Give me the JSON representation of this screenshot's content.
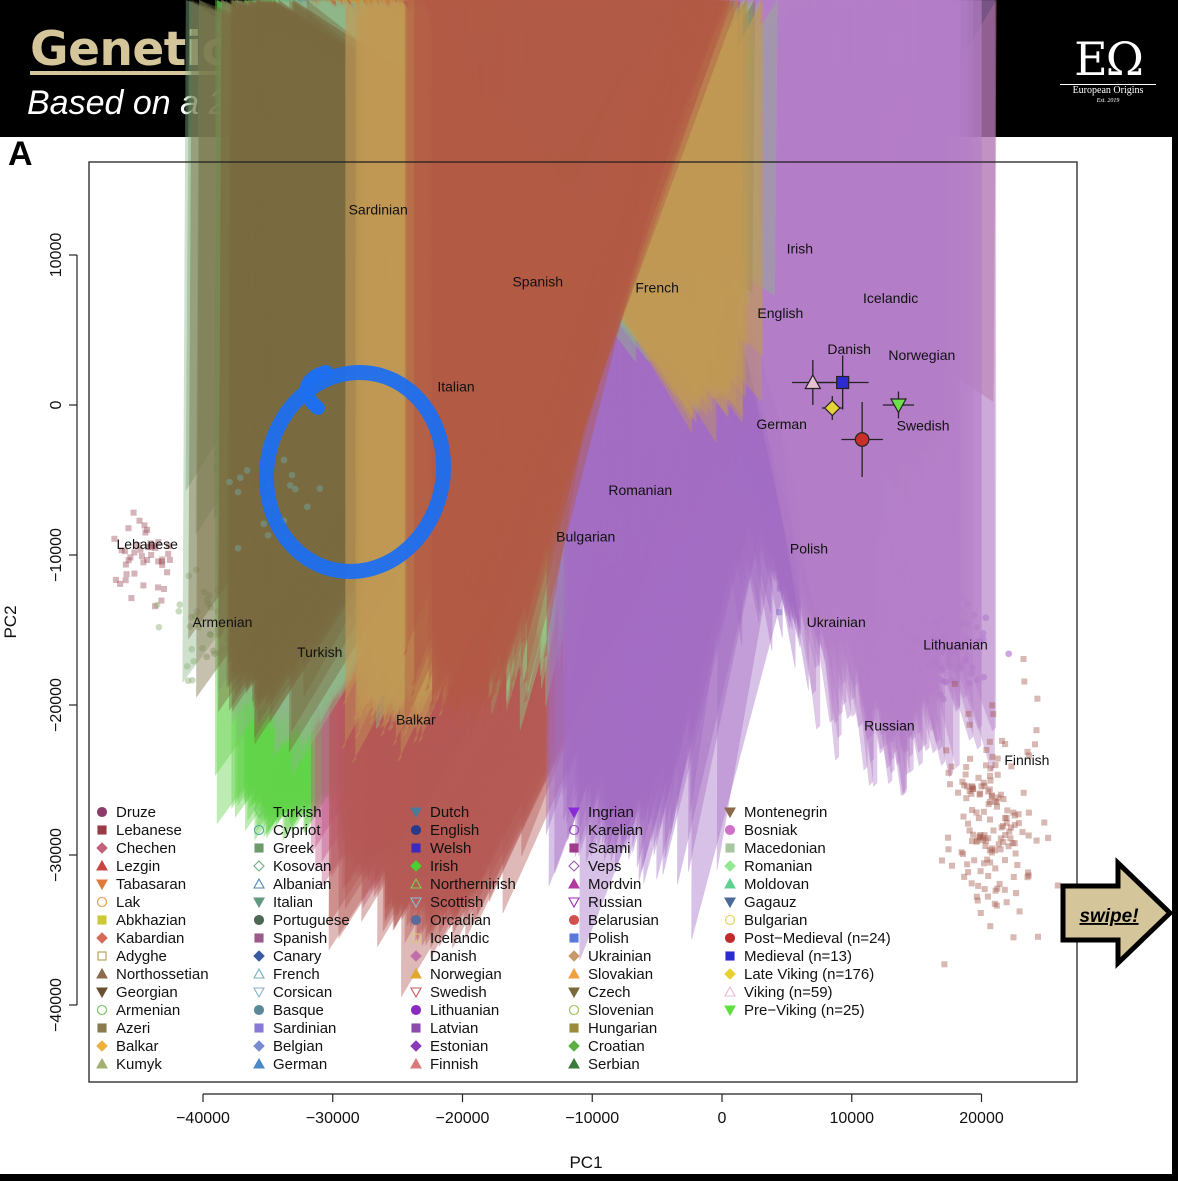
{
  "header": {
    "title": "Genetic Map of Europe",
    "subtitle": "Based on a 2023 Study by Rodríguez-Varela et al.",
    "logo_mark": "EΩ",
    "logo_name": "European Origins",
    "logo_est": "Est. 2019"
  },
  "panel_label": "A",
  "swipe_label": "swipe!",
  "annotation": {
    "type": "hand-drawn ellipse",
    "color": "#1e6ff0",
    "target": "Italian/Greek cluster"
  },
  "chart_data": {
    "type": "scatter",
    "xlabel": "PC1",
    "ylabel": "PC2",
    "xlim": [
      -49000,
      27000
    ],
    "ylim": [
      -45000,
      16000
    ],
    "xticks": [
      -40000,
      -30000,
      -20000,
      -10000,
      0,
      10000,
      20000
    ],
    "yticks": [
      -40000,
      -30000,
      -20000,
      -10000,
      0,
      10000
    ],
    "xtick_labels": [
      "−40000",
      "−30000",
      "−20000",
      "−10000",
      "0",
      "10000",
      "20000"
    ],
    "ytick_labels": [
      "−40000",
      "−30000",
      "−20000",
      "−10000",
      "0",
      "10000"
    ],
    "population_labels": [
      {
        "text": "Sardinian",
        "x": -26500,
        "y": 12700
      },
      {
        "text": "Spanish",
        "x": -14200,
        "y": 7900
      },
      {
        "text": "French",
        "x": -5000,
        "y": 7500
      },
      {
        "text": "Irish",
        "x": 6000,
        "y": 10100
      },
      {
        "text": "English",
        "x": 4500,
        "y": 5800
      },
      {
        "text": "Icelandic",
        "x": 13000,
        "y": 6800
      },
      {
        "text": "Danish",
        "x": 9800,
        "y": 3400
      },
      {
        "text": "Norwegian",
        "x": 15400,
        "y": 3000
      },
      {
        "text": "Italian",
        "x": -20500,
        "y": 900
      },
      {
        "text": "German",
        "x": 4600,
        "y": -1600
      },
      {
        "text": "Swedish",
        "x": 15500,
        "y": -1700
      },
      {
        "text": "Romanian",
        "x": -6300,
        "y": -6000
      },
      {
        "text": "Bulgarian",
        "x": -10500,
        "y": -9100
      },
      {
        "text": "Lebanese",
        "x": -44300,
        "y": -9600
      },
      {
        "text": "Polish",
        "x": 6700,
        "y": -9900
      },
      {
        "text": "Armenian",
        "x": -38500,
        "y": -14800
      },
      {
        "text": "Ukrainian",
        "x": 8800,
        "y": -14800
      },
      {
        "text": "Lithuanian",
        "x": 18000,
        "y": -16300
      },
      {
        "text": "Turkish",
        "x": -31000,
        "y": -16800
      },
      {
        "text": "Balkar",
        "x": -23600,
        "y": -21300
      },
      {
        "text": "Russian",
        "x": 12900,
        "y": -21700
      },
      {
        "text": "Finnish",
        "x": 23500,
        "y": -24000
      }
    ],
    "clusters": [
      {
        "name": "Sardinian",
        "cx": -29000,
        "cy": 12200,
        "sx": 1400,
        "sy": 1100,
        "n": 45,
        "color": "#8a6fd8",
        "shape": "square"
      },
      {
        "name": "Spanish",
        "cx": -14000,
        "cy": 6500,
        "sx": 2300,
        "sy": 1800,
        "n": 110,
        "color": "#8b4a9c",
        "shape": "square"
      },
      {
        "name": "French",
        "cx": -4000,
        "cy": 5500,
        "sx": 3000,
        "sy": 2200,
        "n": 160,
        "color": "#6aa098",
        "shape": "triangle"
      },
      {
        "name": "Italian",
        "cx": -23500,
        "cy": -1200,
        "sx": 5200,
        "sy": 4200,
        "n": 330,
        "color": "#6f9a72",
        "shape": "triangle-down"
      },
      {
        "name": "Greek",
        "cx": -29000,
        "cy": -5500,
        "sx": 4600,
        "sy": 2800,
        "n": 190,
        "color": "#7d9e73",
        "shape": "square"
      },
      {
        "name": "Irish",
        "cx": 6000,
        "cy": 8300,
        "sx": 1500,
        "sy": 1300,
        "n": 170,
        "color": "#62d44a",
        "shape": "diamond"
      },
      {
        "name": "English",
        "cx": 4500,
        "cy": 4500,
        "sx": 2600,
        "sy": 1700,
        "n": 190,
        "color": "#3f5aa8",
        "shape": "circle"
      },
      {
        "name": "German",
        "cx": 5500,
        "cy": -1500,
        "sx": 3300,
        "sy": 3500,
        "n": 220,
        "color": "#4f8fc4",
        "shape": "triangle"
      },
      {
        "name": "Icelandic",
        "cx": 11500,
        "cy": 5300,
        "sx": 1300,
        "sy": 1100,
        "n": 70,
        "color": "#c9b860",
        "shape": "square"
      },
      {
        "name": "Danish",
        "cx": 10000,
        "cy": 2400,
        "sx": 1700,
        "sy": 1500,
        "n": 100,
        "color": "#c3588a",
        "shape": "diamond"
      },
      {
        "name": "Norwegian",
        "cx": 12500,
        "cy": 2600,
        "sx": 1800,
        "sy": 1500,
        "n": 120,
        "color": "#c99136",
        "shape": "triangle"
      },
      {
        "name": "Swedish",
        "cx": 13500,
        "cy": -1800,
        "sx": 2000,
        "sy": 2300,
        "n": 140,
        "color": "#b55a55",
        "shape": "triangle-down"
      },
      {
        "name": "Romanian",
        "cx": -8000,
        "cy": -7400,
        "sx": 4200,
        "sy": 1600,
        "n": 120,
        "color": "#8fd28a",
        "shape": "diamond"
      },
      {
        "name": "Bulgarian",
        "cx": -13000,
        "cy": -8600,
        "sx": 3300,
        "sy": 1600,
        "n": 80,
        "color": "#b3a55f",
        "shape": "circle"
      },
      {
        "name": "Polish",
        "cx": 7500,
        "cy": -9800,
        "sx": 1900,
        "sy": 2400,
        "n": 150,
        "color": "#4b5fc4",
        "shape": "square"
      },
      {
        "name": "Ukrainian",
        "cx": 8500,
        "cy": -14500,
        "sx": 2600,
        "sy": 2100,
        "n": 100,
        "color": "#a46dc4",
        "shape": "triangle-down"
      },
      {
        "name": "Lithuanian",
        "cx": 16800,
        "cy": -16000,
        "sx": 1900,
        "sy": 1600,
        "n": 150,
        "color": "#8a2fc2",
        "shape": "circle"
      },
      {
        "name": "Russian",
        "cx": 13500,
        "cy": -21500,
        "sx": 2800,
        "sy": 2500,
        "n": 110,
        "color": "#b57fc9",
        "shape": "triangle"
      },
      {
        "name": "Finnish",
        "cx": 21000,
        "cy": -27000,
        "sx": 1700,
        "sy": 3700,
        "n": 160,
        "color": "#a4584a",
        "shape": "square"
      },
      {
        "name": "Lebanese",
        "cx": -44500,
        "cy": -10500,
        "sx": 1100,
        "sy": 1100,
        "n": 45,
        "color": "#9b4f5a",
        "shape": "square"
      },
      {
        "name": "Armenian",
        "cx": -39000,
        "cy": -15000,
        "sx": 2100,
        "sy": 1800,
        "n": 55,
        "color": "#86a868",
        "shape": "circle"
      },
      {
        "name": "Turkish",
        "cx": -32500,
        "cy": -19000,
        "sx": 3100,
        "sy": 2000,
        "n": 120,
        "color": "#8fb88a",
        "shape": "triangle-down"
      },
      {
        "name": "Georgian",
        "cx": -36500,
        "cy": -19500,
        "sx": 1600,
        "sy": 1500,
        "n": 50,
        "color": "#7a6a40",
        "shape": "triangle-down"
      },
      {
        "name": "Balkar",
        "cx": -25500,
        "cy": -20500,
        "sx": 1600,
        "sy": 1300,
        "n": 60,
        "color": "#c29a55",
        "shape": "diamond"
      },
      {
        "name": "Lezgin",
        "cx": -19500,
        "cy": -19200,
        "sx": 2300,
        "sy": 1500,
        "n": 80,
        "color": "#b35a45",
        "shape": "triangle"
      },
      {
        "name": "Basque",
        "cx": -35500,
        "cy": -6000,
        "sx": 2000,
        "sy": 1400,
        "n": 18,
        "color": "#6fb0b0",
        "shape": "circle"
      }
    ],
    "ancient_groups": [
      {
        "name": "Post-Medieval (n=24)",
        "x": 10800,
        "y": -2300,
        "xerr": 1600,
        "yerr": 2500,
        "color": "#c7302a",
        "shape": "circle"
      },
      {
        "name": "Medieval (n=13)",
        "x": 9300,
        "y": 1500,
        "xerr": 2000,
        "yerr": 1800,
        "color": "#2b2bd0",
        "shape": "square"
      },
      {
        "name": "Late Viking (n=176)",
        "x": 8500,
        "y": -200,
        "xerr": 800,
        "yerr": 800,
        "color": "#e6d23a",
        "shape": "diamond"
      },
      {
        "name": "Viking (n=59)",
        "x": 7000,
        "y": 1500,
        "xerr": 1600,
        "yerr": 1500,
        "color": "#e7c0d2",
        "shape": "triangle"
      },
      {
        "name": "Pre-Viking (n=25)",
        "x": 13600,
        "y": 0,
        "xerr": 1200,
        "yerr": 900,
        "color": "#6de04a",
        "shape": "triangle-down"
      }
    ],
    "legend": {
      "position": "bottom-left",
      "columns": [
        [
          {
            "label": "Druze",
            "color": "#8e3a6a",
            "shape": "circle"
          },
          {
            "label": "Lebanese",
            "color": "#9b3a45",
            "shape": "square"
          },
          {
            "label": "Chechen",
            "color": "#c4607a",
            "shape": "diamond"
          },
          {
            "label": "Lezgin",
            "color": "#c94545",
            "shape": "triangle"
          },
          {
            "label": "Tabasaran",
            "color": "#e07a3a",
            "shape": "triangle-down"
          },
          {
            "label": "Lak",
            "color": "#e59a3a",
            "shape": "circle-open"
          },
          {
            "label": "Abkhazian",
            "color": "#c9c93a",
            "shape": "square"
          },
          {
            "label": "Kabardian",
            "color": "#d86a5a",
            "shape": "diamond"
          },
          {
            "label": "Adyghe",
            "color": "#b59a45",
            "shape": "square-open"
          },
          {
            "label": "Northossetian",
            "color": "#8a6a4a",
            "shape": "triangle"
          },
          {
            "label": "Georgian",
            "color": "#6a5030",
            "shape": "triangle-down"
          },
          {
            "label": "Armenian",
            "color": "#6fc35a",
            "shape": "circle-open"
          },
          {
            "label": "Azeri",
            "color": "#8a7a50",
            "shape": "square"
          },
          {
            "label": "Balkar",
            "color": "#f0b040",
            "shape": "diamond"
          },
          {
            "label": "Kumyk",
            "color": "#a0b070",
            "shape": "triangle"
          }
        ],
        [
          {
            "label": "Turkish",
            "color": "#6fd06a",
            "shape": "triangle-down-open"
          },
          {
            "label": "Cypriot",
            "color": "#4aa8a0",
            "shape": "circle-open"
          },
          {
            "label": "Greek",
            "color": "#6f9a6a",
            "shape": "square"
          },
          {
            "label": "Kosovan",
            "color": "#6fae7a",
            "shape": "diamond-open"
          },
          {
            "label": "Albanian",
            "color": "#4f86b0",
            "shape": "triangle-open"
          },
          {
            "label": "Italian",
            "color": "#5f9a80",
            "shape": "triangle-down"
          },
          {
            "label": "Portuguese",
            "color": "#4a6a55",
            "shape": "circle"
          },
          {
            "label": "Spanish",
            "color": "#9a5a8a",
            "shape": "square"
          },
          {
            "label": "Canary",
            "color": "#3a5aa0",
            "shape": "diamond"
          },
          {
            "label": "French",
            "color": "#6fb0c0",
            "shape": "triangle-open"
          },
          {
            "label": "Corsican",
            "color": "#8ab0c8",
            "shape": "triangle-down-open"
          },
          {
            "label": "Basque",
            "color": "#5a8a9a",
            "shape": "circle"
          },
          {
            "label": "Sardinian",
            "color": "#8a7ad8",
            "shape": "square"
          },
          {
            "label": "Belgian",
            "color": "#7a8ad0",
            "shape": "diamond"
          },
          {
            "label": "German",
            "color": "#4a8ac8",
            "shape": "triangle"
          }
        ],
        [
          {
            "label": "Dutch",
            "color": "#4a7a9a",
            "shape": "triangle-down"
          },
          {
            "label": "English",
            "color": "#2a3a8a",
            "shape": "circle"
          },
          {
            "label": "Welsh",
            "color": "#3a2ac0",
            "shape": "square"
          },
          {
            "label": "Irish",
            "color": "#4ad030",
            "shape": "diamond"
          },
          {
            "label": "Northernirish",
            "color": "#7ad050",
            "shape": "triangle-open"
          },
          {
            "label": "Scottish",
            "color": "#8ac0d8",
            "shape": "triangle-down-open"
          },
          {
            "label": "Orcadian",
            "color": "#5a6a9a",
            "shape": "circle"
          },
          {
            "label": "Icelandic",
            "color": "#d8c878",
            "shape": "square-open"
          },
          {
            "label": "Danish",
            "color": "#c070a8",
            "shape": "diamond"
          },
          {
            "label": "Norwegian",
            "color": "#e0a830",
            "shape": "triangle"
          },
          {
            "label": "Swedish",
            "color": "#c85a5a",
            "shape": "triangle-down-open"
          },
          {
            "label": "Lithuanian",
            "color": "#8a2ac0",
            "shape": "circle"
          },
          {
            "label": "Latvian",
            "color": "#8a4ab0",
            "shape": "square"
          },
          {
            "label": "Estonian",
            "color": "#8a3ab8",
            "shape": "diamond"
          },
          {
            "label": "Finnish",
            "color": "#d87a7a",
            "shape": "triangle"
          }
        ],
        [
          {
            "label": "Ingrian",
            "color": "#8a2ad8",
            "shape": "triangle-down"
          },
          {
            "label": "Karelian",
            "color": "#9a4ac8",
            "shape": "circle-open"
          },
          {
            "label": "Saami",
            "color": "#a03a8a",
            "shape": "square"
          },
          {
            "label": "Veps",
            "color": "#9a5aa8",
            "shape": "diamond-open"
          },
          {
            "label": "Mordvin",
            "color": "#b03aa0",
            "shape": "triangle"
          },
          {
            "label": "Russian",
            "color": "#9a2ab0",
            "shape": "triangle-down-open"
          },
          {
            "label": "Belarusian",
            "color": "#d05050",
            "shape": "circle"
          },
          {
            "label": "Polish",
            "color": "#5a7ad8",
            "shape": "square"
          },
          {
            "label": "Ukrainian",
            "color": "#c89a6a",
            "shape": "diamond"
          },
          {
            "label": "Slovakian",
            "color": "#f0a040",
            "shape": "triangle"
          },
          {
            "label": "Czech",
            "color": "#7a6a3a",
            "shape": "triangle-down"
          },
          {
            "label": "Slovenian",
            "color": "#9ac050",
            "shape": "circle-open"
          },
          {
            "label": "Hungarian",
            "color": "#9a8a3a",
            "shape": "square"
          },
          {
            "label": "Croatian",
            "color": "#5ab040",
            "shape": "diamond"
          },
          {
            "label": "Serbian",
            "color": "#3a7a3a",
            "shape": "triangle"
          }
        ],
        [
          {
            "label": "Montenegrin",
            "color": "#8a6a4a",
            "shape": "triangle-down"
          },
          {
            "label": "Bosniak",
            "color": "#d070c8",
            "shape": "circle"
          },
          {
            "label": "Macedonian",
            "color": "#a8c8a0",
            "shape": "square"
          },
          {
            "label": "Romanian",
            "color": "#90e890",
            "shape": "diamond"
          },
          {
            "label": "Moldovan",
            "color": "#60d090",
            "shape": "triangle"
          },
          {
            "label": "Gagauz",
            "color": "#4a6a9a",
            "shape": "triangle-down"
          },
          {
            "label": "Bulgarian",
            "color": "#e0d050",
            "shape": "circle-open"
          },
          {
            "label": "Post−Medieval (n=24)",
            "color": "#c02a2a",
            "shape": "circle"
          },
          {
            "label": "Medieval (n=13)",
            "color": "#2a2ad0",
            "shape": "square"
          },
          {
            "label": "Late Viking (n=176)",
            "color": "#e8d030",
            "shape": "diamond"
          },
          {
            "label": "Viking (n=59)",
            "color": "#e8b8d0",
            "shape": "triangle-open"
          },
          {
            "label": "Pre−Viking (n=25)",
            "color": "#60e040",
            "shape": "triangle-down"
          }
        ]
      ]
    },
    "grid": false
  }
}
